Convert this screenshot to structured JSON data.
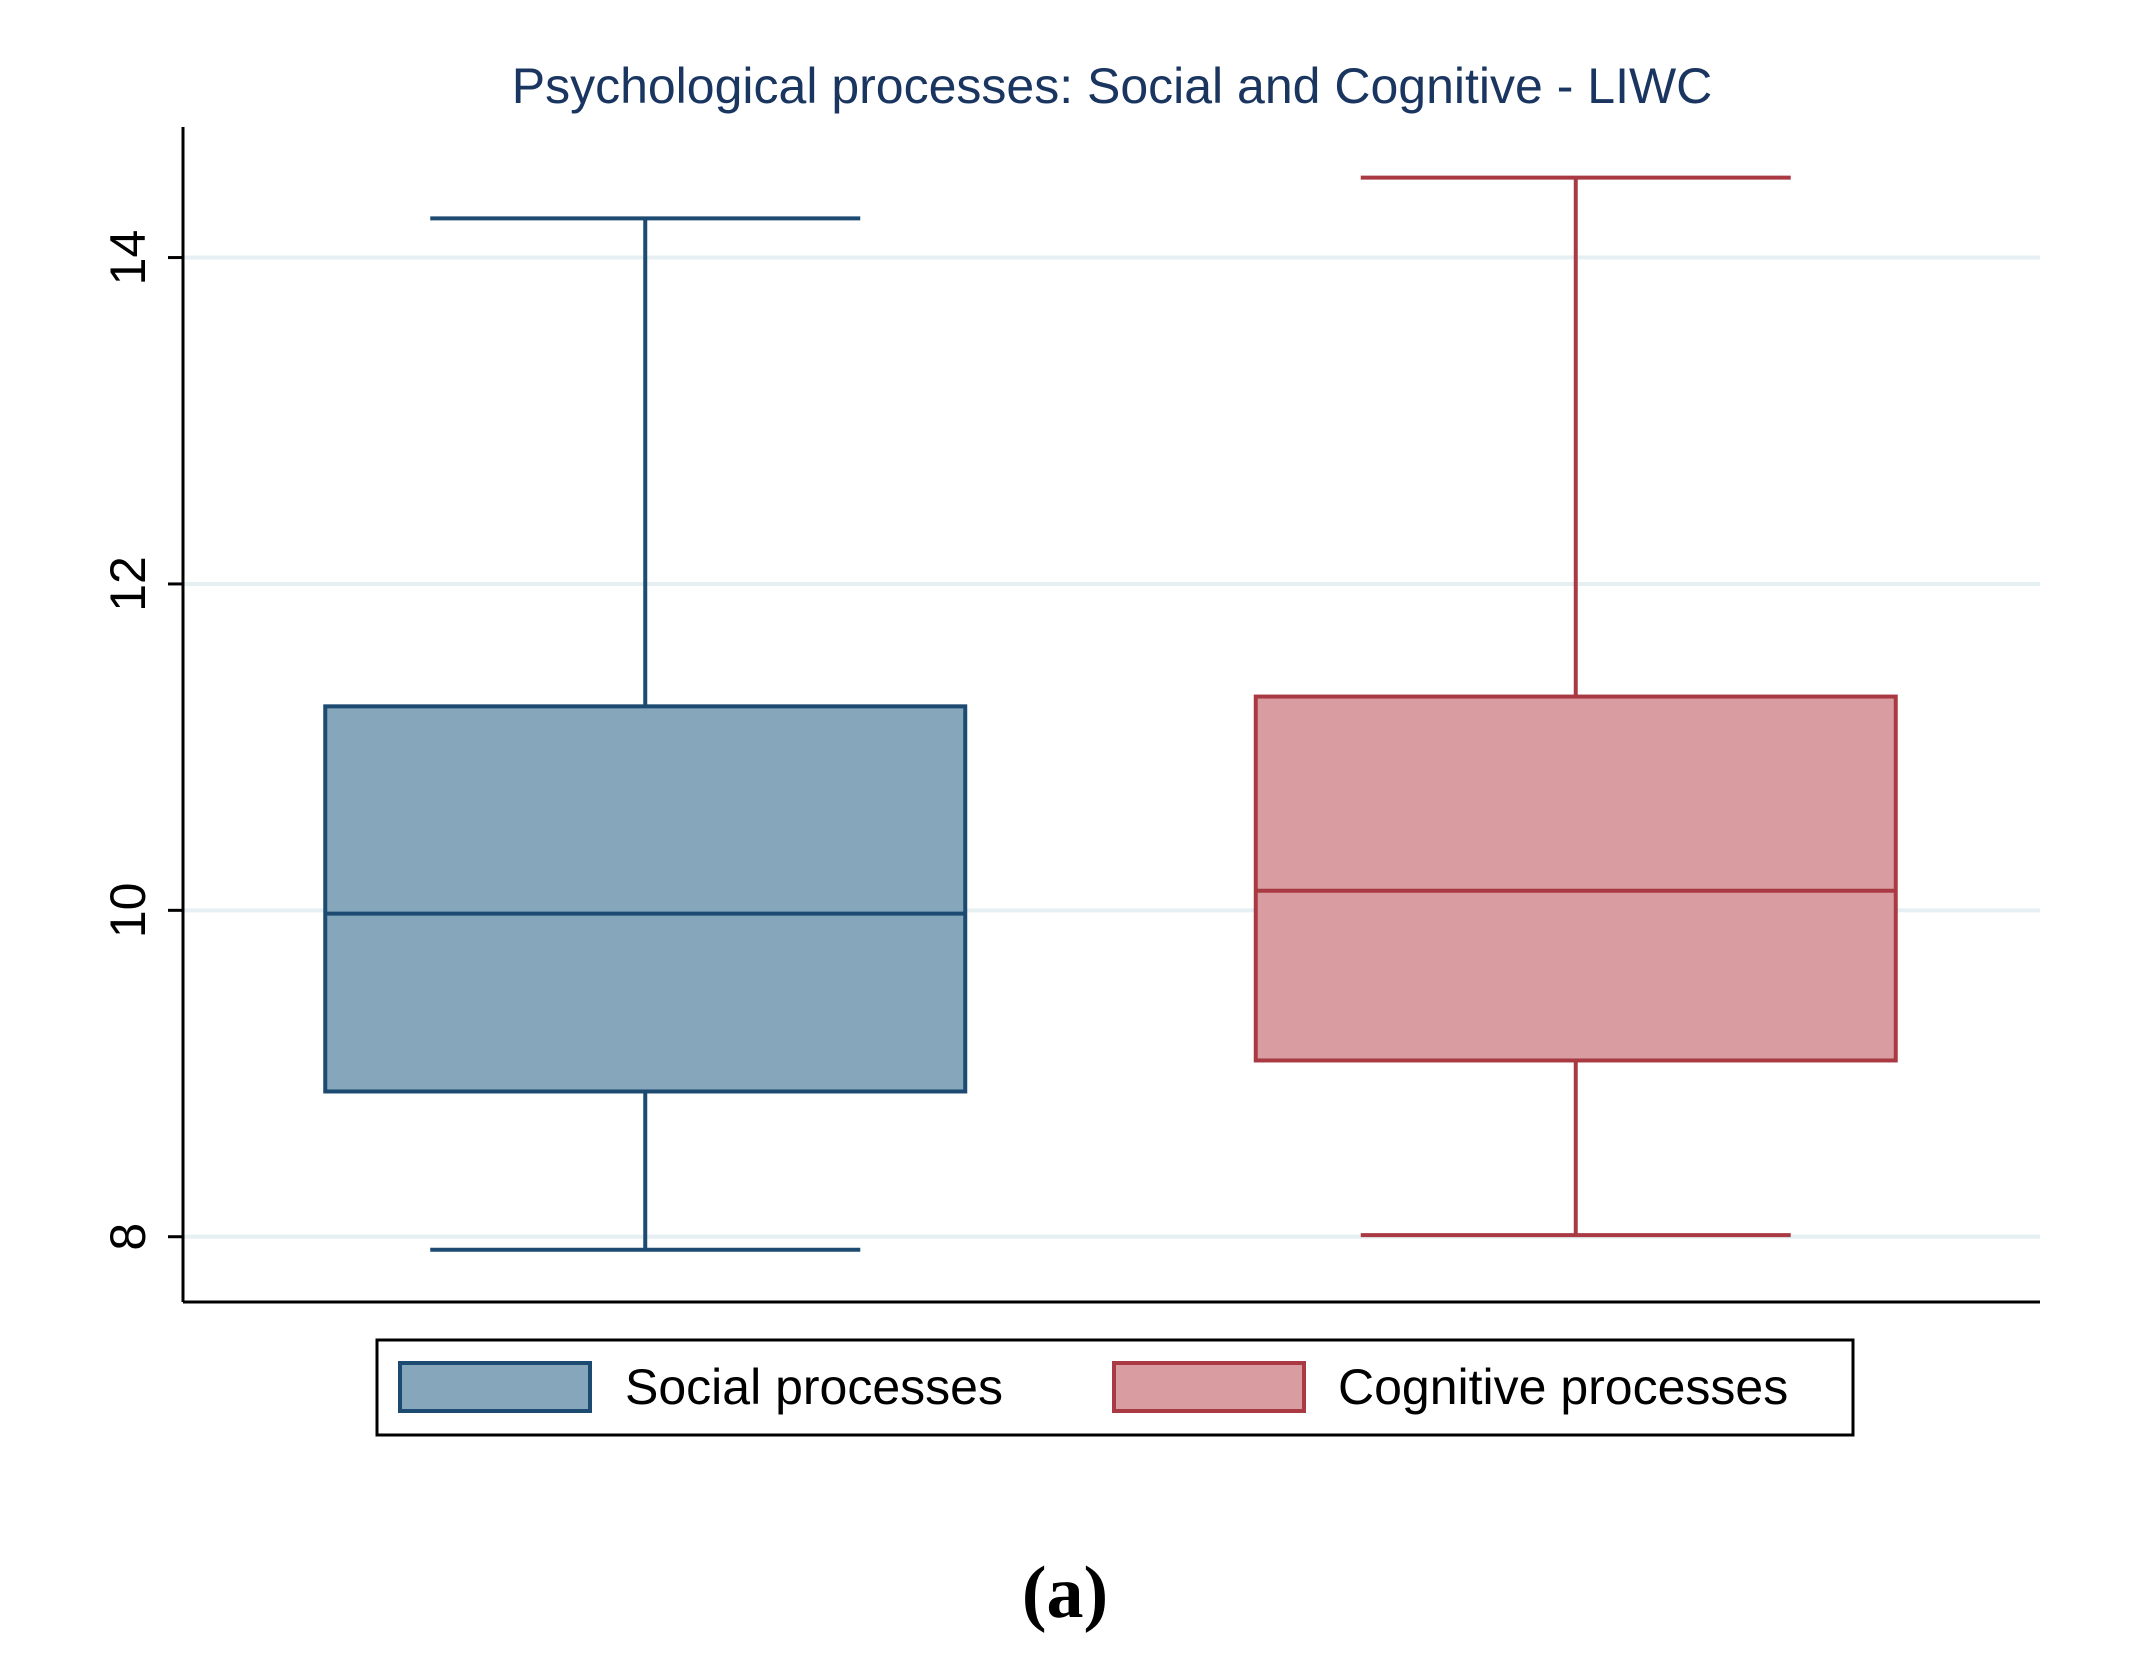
{
  "chart_data": {
    "type": "box",
    "title": "Psychological processes: Social and Cognitive - LIWC",
    "xlabel": "",
    "ylabel": "",
    "ylim": [
      7.6,
      14.8
    ],
    "yticks": [
      8,
      10,
      12,
      14
    ],
    "grid": true,
    "legend_position": "bottom",
    "series": [
      {
        "name": "Social processes",
        "min": 7.92,
        "q1": 8.89,
        "median": 9.98,
        "q3": 11.25,
        "max": 14.24,
        "fill": "#86a6bb",
        "stroke": "#1c4a70"
      },
      {
        "name": "Cognitive processes",
        "min": 8.01,
        "q1": 9.08,
        "median": 10.12,
        "q3": 11.31,
        "max": 14.49,
        "fill": "#d99ca1",
        "stroke": "#a93a43"
      }
    ]
  },
  "caption": "(a)"
}
